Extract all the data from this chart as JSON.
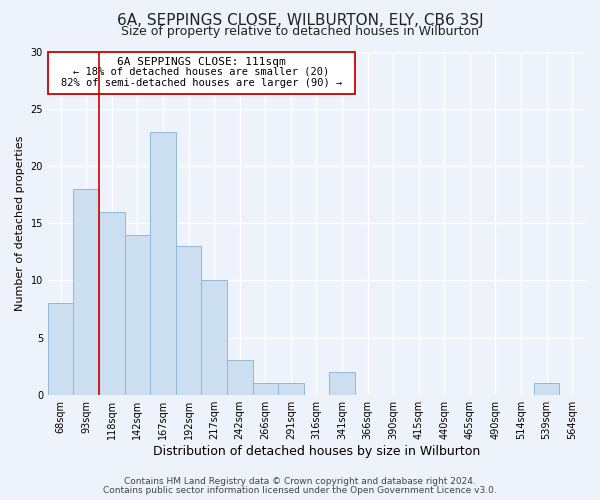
{
  "title": "6A, SEPPINGS CLOSE, WILBURTON, ELY, CB6 3SJ",
  "subtitle": "Size of property relative to detached houses in Wilburton",
  "xlabel": "Distribution of detached houses by size in Wilburton",
  "ylabel": "Number of detached properties",
  "bar_color": "#ccdff0",
  "bar_edge_color": "#90b8d8",
  "categories": [
    "68sqm",
    "93sqm",
    "118sqm",
    "142sqm",
    "167sqm",
    "192sqm",
    "217sqm",
    "242sqm",
    "266sqm",
    "291sqm",
    "316sqm",
    "341sqm",
    "366sqm",
    "390sqm",
    "415sqm",
    "440sqm",
    "465sqm",
    "490sqm",
    "514sqm",
    "539sqm",
    "564sqm"
  ],
  "values": [
    8,
    18,
    16,
    14,
    23,
    13,
    10,
    3,
    1,
    1,
    0,
    2,
    0,
    0,
    0,
    0,
    0,
    0,
    0,
    1,
    0
  ],
  "ylim": [
    0,
    30
  ],
  "yticks": [
    0,
    5,
    10,
    15,
    20,
    25,
    30
  ],
  "property_line_color": "#cc0000",
  "property_line_index": 1.5,
  "annotation_title": "6A SEPPINGS CLOSE: 111sqm",
  "annotation_line1": "← 18% of detached houses are smaller (20)",
  "annotation_line2": "82% of semi-detached houses are larger (90) →",
  "annotation_box_color": "#ffffff",
  "annotation_box_edge": "#cc0000",
  "footer_line1": "Contains HM Land Registry data © Crown copyright and database right 2024.",
  "footer_line2": "Contains public sector information licensed under the Open Government Licence v3.0.",
  "background_color": "#eef2fa",
  "grid_color": "#ffffff",
  "title_fontsize": 11,
  "subtitle_fontsize": 9,
  "xlabel_fontsize": 9,
  "ylabel_fontsize": 8,
  "tick_fontsize": 7,
  "footer_fontsize": 6.5,
  "ann_title_fontsize": 8,
  "ann_text_fontsize": 7.5
}
